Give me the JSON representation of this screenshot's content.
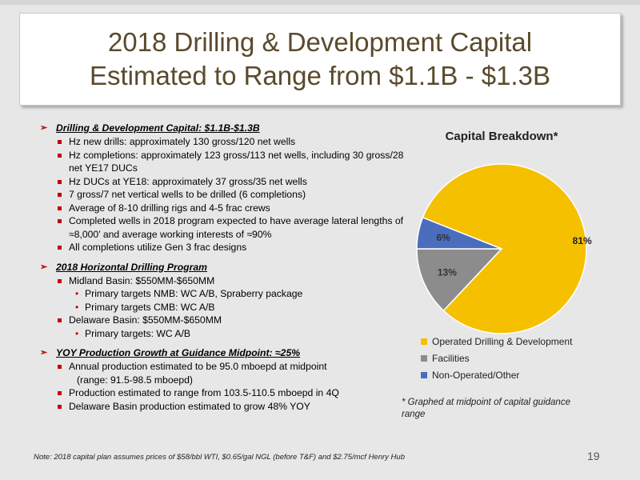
{
  "title": {
    "line1": "2018 Drilling & Development Capital",
    "line2": "Estimated to Range from $1.1B - $1.3B"
  },
  "sections": [
    {
      "heading": "Drilling & Development Capital: $1.1B-$1.3B",
      "items": [
        {
          "text": "Hz new drills: approximately 130 gross/120 net wells",
          "sub": []
        },
        {
          "text": "Hz completions: approximately 123 gross/113 net wells, including 30 gross/28 net YE17 DUCs",
          "sub": []
        },
        {
          "text": "Hz DUCs at YE18: approximately 37 gross/35 net wells",
          "sub": []
        },
        {
          "text": "7 gross/7 net vertical wells to be drilled (6 completions)",
          "sub": []
        },
        {
          "text": "Average of 8-10 drilling rigs and 4-5 frac crews",
          "sub": []
        },
        {
          "text": "Completed wells in 2018 program expected to have average lateral lengths of ≈8,000’ and average working interests of ≈90%",
          "sub": []
        },
        {
          "text": "All completions utilize Gen 3 frac designs",
          "sub": []
        }
      ]
    },
    {
      "heading": "2018 Horizontal Drilling Program",
      "items": [
        {
          "text": "Midland Basin: $550MM-$650MM",
          "sub": [
            "Primary targets NMB: WC A/B, Spraberry package",
            "Primary targets CMB: WC A/B"
          ]
        },
        {
          "text": "Delaware Basin: $550MM-$650MM",
          "sub": [
            "Primary targets: WC A/B"
          ]
        }
      ]
    },
    {
      "heading": "YOY Production Growth at Guidance Midpoint: ≈25%",
      "items": [
        {
          "text": "Annual production estimated to be 95.0 mboepd at midpoint",
          "sub": [],
          "cont": "(range: 91.5-98.5 mboepd)"
        },
        {
          "text": "Production estimated to range from 103.5-110.5 mboepd in 4Q",
          "sub": []
        },
        {
          "text": "Delaware Basin production estimated to grow 48% YOY",
          "sub": []
        }
      ]
    }
  ],
  "chart_data": {
    "type": "pie",
    "title": "Capital Breakdown*",
    "slices": [
      {
        "label": "Operated Drilling & Development",
        "value": 81,
        "display": "81%",
        "color": "#f5c000"
      },
      {
        "label": "Facilities",
        "value": 13,
        "display": "13%",
        "color": "#8c8c8c"
      },
      {
        "label": "Non-Operated/Other",
        "value": 6,
        "display": "6%",
        "color": "#4a6ebd"
      }
    ],
    "legend_position": "bottom"
  },
  "footnote": "* Graphed at midpoint of capital guidance range",
  "note": "Note: 2018 capital plan assumes prices of $58/bbl WTI, $0.65/gal NGL (before T&F) and $2.75/mcf Henry Hub",
  "page_number": "19"
}
